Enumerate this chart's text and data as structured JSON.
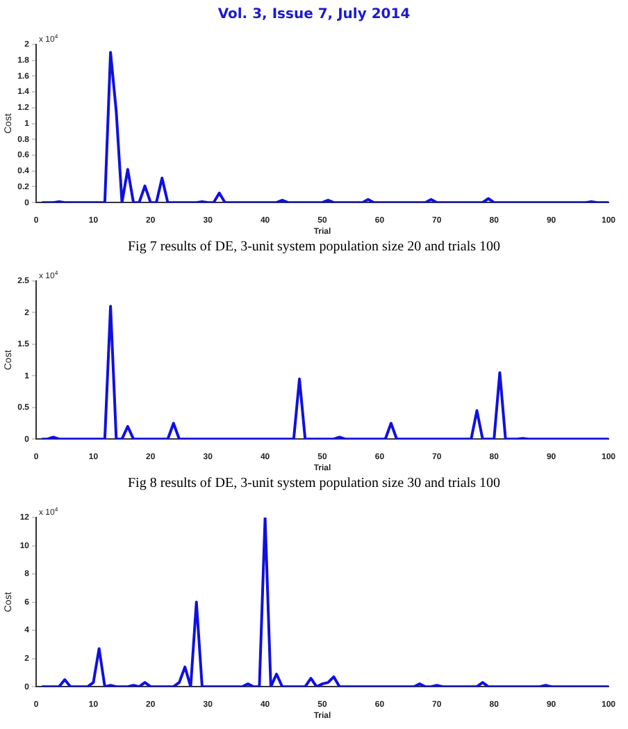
{
  "chart_data": [
    {
      "type": "line",
      "title": "Vol. 3, Issue 7, July 2014",
      "xlabel": "Trial",
      "ylabel": "Cost",
      "annotations": [
        "x 10$^{4}$",
        "Fig 7 results of DE, 3-unit system population size 20 and trials 100"
      ],
      "xlim": [
        0,
        100
      ],
      "xticks": [
        0,
        10,
        20,
        30,
        40,
        50,
        60,
        70,
        80,
        90,
        100
      ],
      "ylim": [
        0,
        2
      ],
      "yticks": [
        0,
        0.2,
        0.4,
        0.6,
        0.8,
        1,
        1.2,
        1.4,
        1.6,
        1.8,
        2
      ],
      "grid": false,
      "legend": false,
      "marker": "none",
      "line_style": "solid",
      "series": [
        {
          "color": "#1010e0",
          "x": [
            1,
            3,
            4,
            5,
            12,
            13,
            14,
            15,
            16,
            17,
            18,
            19,
            20,
            21,
            22,
            23,
            28,
            29,
            30,
            31,
            32,
            33,
            42,
            43,
            44,
            50,
            51,
            52,
            57,
            58,
            59,
            68,
            69,
            70,
            78,
            79,
            80,
            96,
            97,
            98,
            100
          ],
          "values": [
            0,
            0,
            0.01,
            0,
            0,
            1.9,
            1.15,
            0,
            0.42,
            0,
            0,
            0.21,
            0,
            0,
            0.31,
            0,
            0,
            0.01,
            0,
            0,
            0.12,
            0,
            0,
            0.03,
            0,
            0,
            0.03,
            0,
            0,
            0.04,
            0,
            0,
            0.04,
            0,
            0,
            0.05,
            0,
            0,
            0.01,
            0,
            0
          ]
        }
      ]
    },
    {
      "type": "line",
      "xlabel": "Trial",
      "ylabel": "Cost",
      "annotations": [
        "x 10$^{4}$",
        "Fig 8 results of DE, 3-unit system population size 30 and trials 100"
      ],
      "xlim": [
        0,
        100
      ],
      "xticks": [
        0,
        10,
        20,
        30,
        40,
        50,
        60,
        70,
        80,
        90,
        100
      ],
      "ylim": [
        0,
        2.5
      ],
      "yticks": [
        0,
        0.5,
        1,
        1.5,
        2,
        2.5
      ],
      "grid": false,
      "legend": false,
      "marker": "none",
      "line_style": "solid",
      "series": [
        {
          "color": "#1010e0",
          "x": [
            1,
            2,
            3,
            4,
            12,
            13,
            14,
            15,
            16,
            17,
            23,
            24,
            25,
            45,
            46,
            47,
            52,
            53,
            54,
            61,
            62,
            63,
            76,
            77,
            78,
            80,
            81,
            82,
            84,
            85,
            86,
            100
          ],
          "values": [
            0,
            0,
            0.03,
            0,
            0,
            2.1,
            0,
            0,
            0.2,
            0,
            0,
            0.25,
            0,
            0,
            0.95,
            0,
            0,
            0.03,
            0,
            0,
            0.25,
            0,
            0,
            0.45,
            0,
            0,
            1.05,
            0,
            0,
            0.01,
            0,
            0
          ]
        }
      ]
    },
    {
      "type": "line",
      "xlabel": "Trial",
      "ylabel": "Cost",
      "annotations": [
        "x 10$^{4}$"
      ],
      "xlim": [
        0,
        100
      ],
      "xticks": [
        0,
        10,
        20,
        30,
        40,
        50,
        60,
        70,
        80,
        90,
        100
      ],
      "ylim": [
        0,
        12
      ],
      "yticks": [
        0,
        2,
        4,
        6,
        8,
        10,
        12
      ],
      "grid": false,
      "legend": false,
      "marker": "none",
      "line_style": "solid",
      "series": [
        {
          "color": "#1010e0",
          "x": [
            1,
            4,
            5,
            6,
            9,
            10,
            11,
            12,
            13,
            14,
            16,
            17,
            18,
            19,
            20,
            24,
            25,
            26,
            27,
            28,
            29,
            36,
            37,
            38,
            39,
            40,
            41,
            42,
            43,
            47,
            48,
            49,
            50,
            51,
            52,
            53,
            66,
            67,
            68,
            69,
            70,
            71,
            77,
            78,
            79,
            88,
            89,
            90,
            100
          ],
          "values": [
            0,
            0,
            0.5,
            0,
            0,
            0.3,
            2.7,
            0,
            0.1,
            0,
            0,
            0.1,
            0,
            0.3,
            0,
            0,
            0.3,
            1.4,
            0,
            6,
            0,
            0,
            0.2,
            0,
            0,
            12,
            0,
            0.9,
            0,
            0,
            0.6,
            0,
            0.2,
            0.3,
            0.7,
            0,
            0,
            0.2,
            0,
            0,
            0.1,
            0,
            0,
            0.3,
            0,
            0,
            0.1,
            0,
            0
          ]
        }
      ]
    }
  ]
}
